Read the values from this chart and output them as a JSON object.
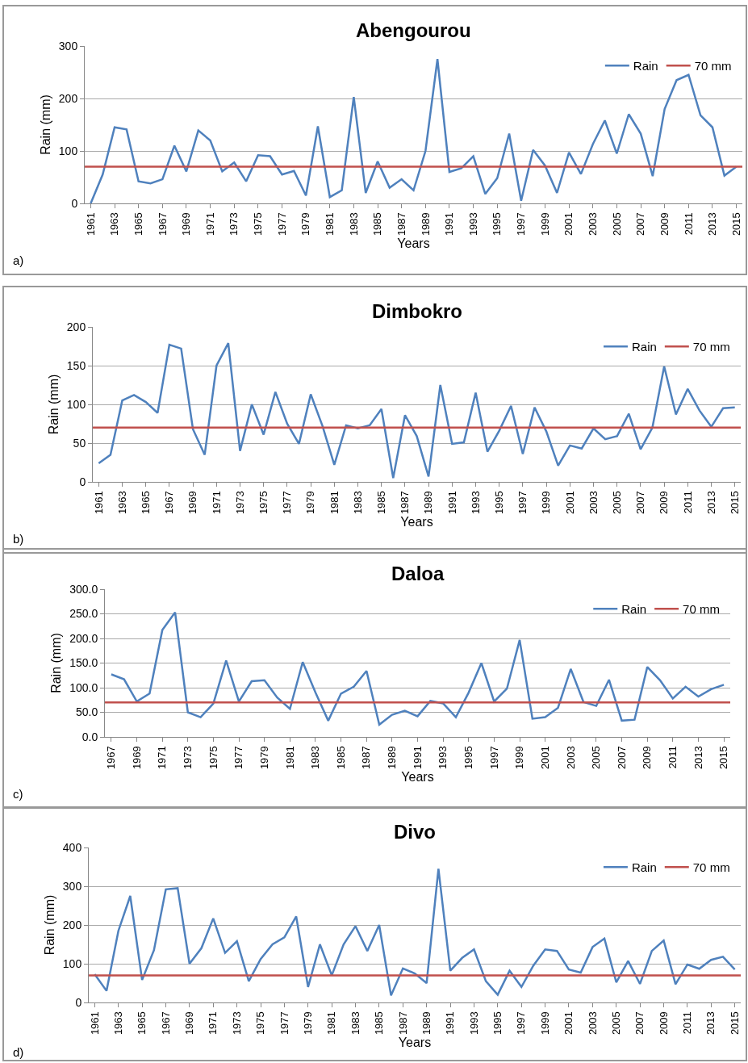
{
  "chart_data": [
    {
      "type": "line",
      "title": "Abengourou",
      "xlabel": "Years",
      "ylabel": "Rain (mm)",
      "annotations": [
        "a)"
      ],
      "x": [
        1961,
        1962,
        1963,
        1964,
        1965,
        1966,
        1967,
        1968,
        1969,
        1970,
        1971,
        1972,
        1973,
        1974,
        1975,
        1976,
        1977,
        1978,
        1979,
        1980,
        1981,
        1982,
        1983,
        1984,
        1985,
        1986,
        1987,
        1988,
        1989,
        1990,
        1991,
        1992,
        1993,
        1994,
        1995,
        1996,
        1997,
        1998,
        1999,
        2000,
        2001,
        2002,
        2003,
        2004,
        2005,
        2006,
        2007,
        2008,
        2009,
        2010,
        2011,
        2012,
        2013,
        2014,
        2015
      ],
      "series": [
        {
          "name": "Rain",
          "color": "#4f81bd",
          "values": [
            0,
            55,
            145,
            141,
            42,
            38,
            46,
            110,
            61,
            139,
            120,
            61,
            78,
            42,
            92,
            90,
            55,
            62,
            15,
            147,
            12,
            25,
            203,
            20,
            80,
            30,
            46,
            25,
            100,
            275,
            60,
            67,
            90,
            18,
            48,
            133,
            5,
            102,
            72,
            20,
            97,
            56,
            113,
            158,
            95,
            170,
            133,
            52,
            180,
            235,
            245,
            168,
            145,
            53,
            70
          ]
        }
      ],
      "ref_lines": [
        {
          "axis": "y",
          "value": 70,
          "label": "70 mm",
          "color": "#c0504d"
        }
      ],
      "xlim": [
        1960.5,
        2015.5
      ],
      "xticks": [
        1961,
        1963,
        1965,
        1967,
        1969,
        1971,
        1973,
        1975,
        1977,
        1979,
        1981,
        1983,
        1985,
        1987,
        1989,
        1991,
        1993,
        1995,
        1997,
        1999,
        2001,
        2003,
        2005,
        2007,
        2009,
        2011,
        2013,
        2015
      ],
      "ylim": [
        0,
        300
      ],
      "yticks": [
        0,
        100,
        200,
        300
      ],
      "grid": "y",
      "legend": "top right",
      "marker": "none",
      "line_style": "solid"
    },
    {
      "type": "line",
      "title": "Dimbokro",
      "xlabel": "Years",
      "ylabel": "Rain (mm)",
      "annotations": [
        "b)"
      ],
      "x": [
        1961,
        1962,
        1963,
        1964,
        1965,
        1966,
        1967,
        1968,
        1969,
        1970,
        1971,
        1972,
        1973,
        1974,
        1975,
        1976,
        1977,
        1978,
        1979,
        1980,
        1981,
        1982,
        1983,
        1984,
        1985,
        1986,
        1987,
        1988,
        1989,
        1990,
        1991,
        1992,
        1993,
        1994,
        1995,
        1996,
        1997,
        1998,
        1999,
        2000,
        2001,
        2002,
        2003,
        2004,
        2005,
        2006,
        2007,
        2008,
        2009,
        2010,
        2011,
        2012,
        2013,
        2014,
        2015
      ],
      "series": [
        {
          "name": "Rain",
          "color": "#4f81bd",
          "values": [
            24,
            35,
            105,
            112,
            103,
            89,
            177,
            172,
            68,
            35,
            150,
            179,
            40,
            100,
            61,
            116,
            75,
            49,
            113,
            72,
            22,
            73,
            69,
            73,
            94,
            5,
            86,
            59,
            7,
            125,
            49,
            51,
            115,
            39,
            66,
            98,
            36,
            96,
            65,
            21,
            47,
            43,
            69,
            55,
            59,
            88,
            42,
            70,
            149,
            87,
            120,
            92,
            71,
            95,
            96
          ]
        }
      ],
      "ref_lines": [
        {
          "axis": "y",
          "value": 70,
          "label": "70 mm",
          "color": "#c0504d"
        }
      ],
      "xlim": [
        1960.5,
        2015.5
      ],
      "xticks": [
        1961,
        1963,
        1965,
        1967,
        1969,
        1971,
        1973,
        1975,
        1977,
        1979,
        1981,
        1983,
        1985,
        1987,
        1989,
        1991,
        1993,
        1995,
        1997,
        1999,
        2001,
        2003,
        2005,
        2007,
        2009,
        2011,
        2013,
        2015
      ],
      "ylim": [
        0,
        200
      ],
      "yticks": [
        0,
        50,
        100,
        150,
        200
      ],
      "grid": "y",
      "legend": "top right",
      "marker": "none",
      "line_style": "solid"
    },
    {
      "type": "line",
      "title": "Daloa",
      "xlabel": "Years",
      "ylabel": "Rain (mm)",
      "annotations": [
        "c)"
      ],
      "x": [
        1967,
        1968,
        1969,
        1970,
        1971,
        1972,
        1973,
        1974,
        1975,
        1976,
        1977,
        1978,
        1979,
        1980,
        1981,
        1982,
        1983,
        1984,
        1985,
        1986,
        1987,
        1988,
        1989,
        1990,
        1991,
        1992,
        1993,
        1994,
        1995,
        1996,
        1997,
        1998,
        1999,
        2000,
        2001,
        2002,
        2003,
        2004,
        2005,
        2006,
        2007,
        2008,
        2009,
        2010,
        2011,
        2012,
        2013,
        2014,
        2015
      ],
      "series": [
        {
          "name": "Rain",
          "color": "#4f81bd",
          "values": [
            127,
            117,
            72,
            88,
            217,
            253,
            50,
            40,
            68,
            155,
            72,
            113,
            115,
            80,
            57,
            152,
            90,
            33,
            88,
            102,
            134,
            25,
            45,
            53,
            42,
            73,
            68,
            40,
            90,
            150,
            72,
            98,
            197,
            37,
            40,
            59,
            138,
            71,
            63,
            116,
            33,
            35,
            142,
            115,
            78,
            102,
            82,
            97,
            106
          ]
        }
      ],
      "ref_lines": [
        {
          "axis": "y",
          "value": 70,
          "label": "70 mm",
          "color": "#c0504d"
        }
      ],
      "xlim": [
        1966.5,
        2015.5
      ],
      "xticks": [
        1967,
        1969,
        1971,
        1973,
        1975,
        1977,
        1979,
        1981,
        1983,
        1985,
        1987,
        1989,
        1991,
        1993,
        1995,
        1997,
        1999,
        2001,
        2003,
        2005,
        2007,
        2009,
        2011,
        2013,
        2015
      ],
      "ylim": [
        0,
        300
      ],
      "yticks": [
        {
          "value": 0,
          "label": "0.0"
        },
        {
          "value": 50,
          "label": "50.0"
        },
        {
          "value": 100,
          "label": "100.0"
        },
        {
          "value": 150,
          "label": "150.0"
        },
        {
          "value": 200,
          "label": "200.0"
        },
        {
          "value": 250,
          "label": "250.0"
        },
        {
          "value": 300,
          "label": "300.0"
        }
      ],
      "grid": "y",
      "legend": "top right",
      "marker": "none",
      "line_style": "solid"
    },
    {
      "type": "line",
      "title": "Divo",
      "xlabel": "Years",
      "ylabel": "Rain (mm)",
      "annotations": [
        "d)"
      ],
      "x": [
        1961,
        1962,
        1963,
        1964,
        1965,
        1966,
        1967,
        1968,
        1969,
        1970,
        1971,
        1972,
        1973,
        1974,
        1975,
        1976,
        1977,
        1978,
        1979,
        1980,
        1981,
        1982,
        1983,
        1984,
        1985,
        1986,
        1987,
        1988,
        1989,
        1990,
        1991,
        1992,
        1993,
        1994,
        1995,
        1996,
        1997,
        1998,
        1999,
        2000,
        2001,
        2002,
        2003,
        2004,
        2005,
        2006,
        2007,
        2008,
        2009,
        2010,
        2011,
        2012,
        2013,
        2014,
        2015
      ],
      "series": [
        {
          "name": "Rain",
          "color": "#4f81bd",
          "values": [
            73,
            30,
            185,
            275,
            58,
            135,
            292,
            295,
            100,
            140,
            217,
            128,
            158,
            55,
            112,
            150,
            168,
            222,
            40,
            150,
            70,
            150,
            197,
            133,
            200,
            18,
            88,
            75,
            50,
            345,
            82,
            115,
            137,
            55,
            20,
            82,
            40,
            95,
            137,
            133,
            85,
            77,
            143,
            165,
            52,
            107,
            48,
            133,
            160,
            47,
            98,
            87,
            110,
            118,
            85
          ]
        }
      ],
      "ref_lines": [
        {
          "axis": "y",
          "value": 70,
          "label": "70 mm",
          "color": "#c0504d"
        }
      ],
      "xlim": [
        1960.5,
        2015.5
      ],
      "xticks": [
        1961,
        1963,
        1965,
        1967,
        1969,
        1971,
        1973,
        1975,
        1977,
        1979,
        1981,
        1983,
        1985,
        1987,
        1989,
        1991,
        1993,
        1995,
        1997,
        1999,
        2001,
        2003,
        2005,
        2007,
        2009,
        2011,
        2013,
        2015
      ],
      "ylim": [
        0,
        400
      ],
      "yticks": [
        0,
        100,
        200,
        300,
        400
      ],
      "grid": "y",
      "legend": "top right",
      "marker": "none",
      "line_style": "solid"
    }
  ]
}
